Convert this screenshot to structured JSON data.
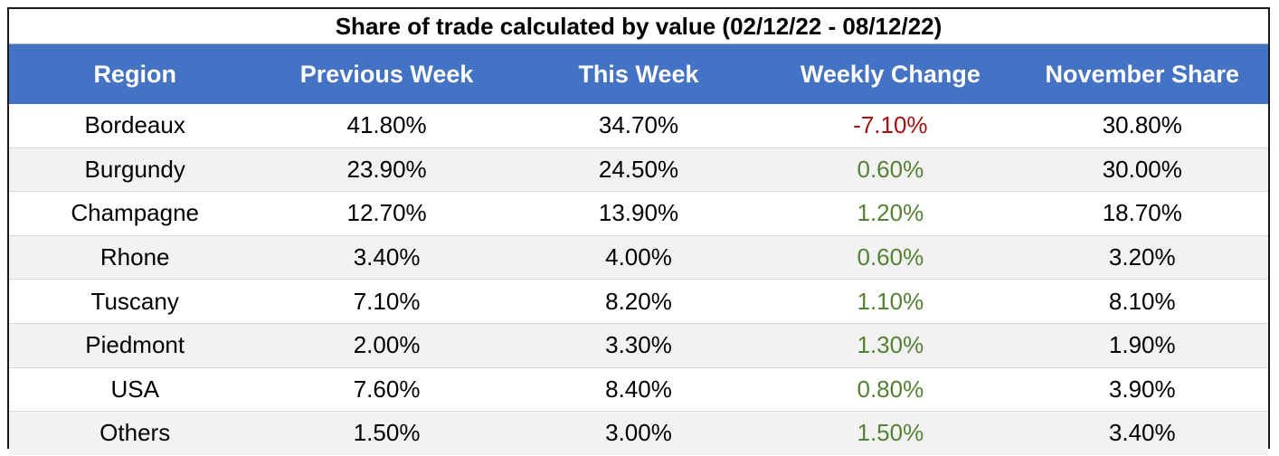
{
  "chart_data": {
    "type": "table",
    "title": "Share of trade calculated by value (02/12/22 - 08/12/22)",
    "columns": [
      "Region",
      "Previous Week",
      "This Week",
      "Weekly Change",
      "November Share"
    ],
    "rows": [
      {
        "region": "Bordeaux",
        "previous_week": "41.80%",
        "this_week": "34.70%",
        "weekly_change": "-7.10%",
        "november_share": "30.80%"
      },
      {
        "region": "Burgundy",
        "previous_week": "23.90%",
        "this_week": "24.50%",
        "weekly_change": "0.60%",
        "november_share": "30.00%"
      },
      {
        "region": "Champagne",
        "previous_week": "12.70%",
        "this_week": "13.90%",
        "weekly_change": "1.20%",
        "november_share": "18.70%"
      },
      {
        "region": "Rhone",
        "previous_week": "3.40%",
        "this_week": "4.00%",
        "weekly_change": "0.60%",
        "november_share": "3.20%"
      },
      {
        "region": "Tuscany",
        "previous_week": "7.10%",
        "this_week": "8.20%",
        "weekly_change": "1.10%",
        "november_share": "8.10%"
      },
      {
        "region": "Piedmont",
        "previous_week": "2.00%",
        "this_week": "3.30%",
        "weekly_change": "1.30%",
        "november_share": "1.90%"
      },
      {
        "region": "USA",
        "previous_week": "7.60%",
        "this_week": "8.40%",
        "weekly_change": "0.80%",
        "november_share": "3.90%"
      },
      {
        "region": "Others",
        "previous_week": "1.50%",
        "this_week": "3.00%",
        "weekly_change": "1.50%",
        "november_share": "3.40%"
      }
    ],
    "colors": {
      "header_bg": "#4472c4",
      "header_text": "#ffffff",
      "negative": "#a50f0f",
      "positive": "#548235",
      "stripe": "#f2f2f2"
    }
  }
}
